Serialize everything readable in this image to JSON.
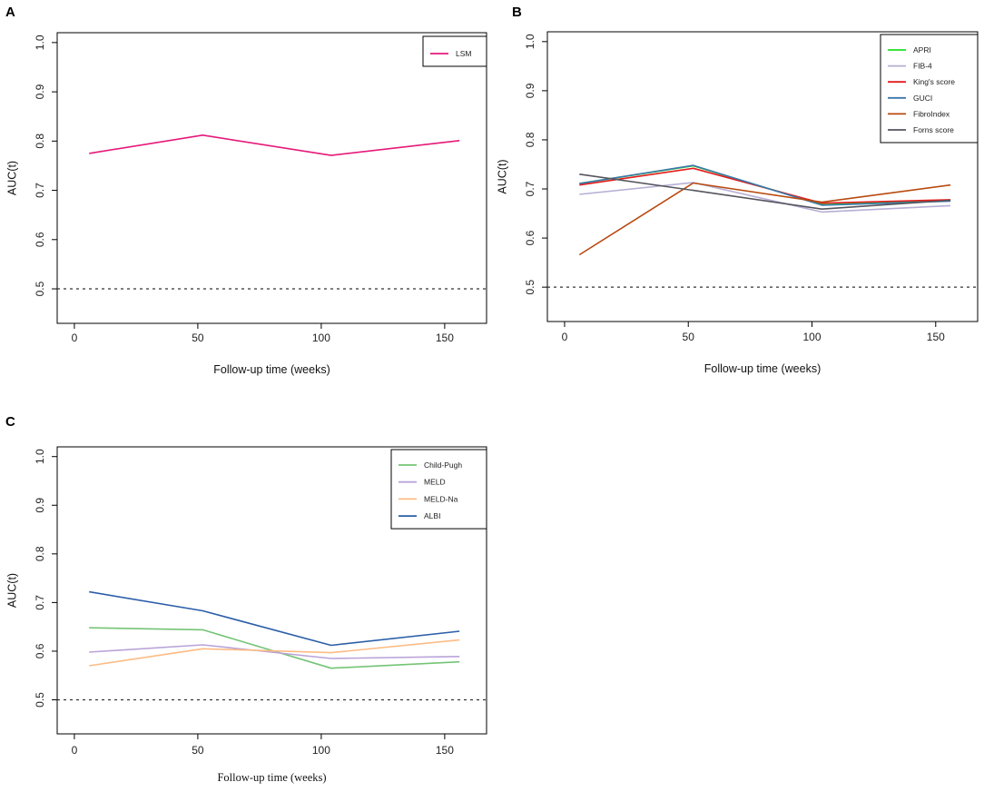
{
  "chart_data": [
    {
      "panel": "A",
      "type": "line",
      "xlabel": "Follow-up time (weeks)",
      "ylabel": "AUC(t)",
      "xlim": [
        0,
        160
      ],
      "ylim": [
        0.43,
        1.02
      ],
      "xticks": [
        0,
        50,
        100,
        150
      ],
      "yticks": [
        0.5,
        0.6,
        0.7,
        0.8,
        0.9,
        1.0
      ],
      "xtick_labels": [
        "0",
        "50",
        "100",
        "150"
      ],
      "ytick_labels": [
        "0.5",
        "0.6",
        "0.7",
        "0.8",
        "0.9",
        "1.0"
      ],
      "reference_line": 0.5,
      "legend_position": "top-right",
      "x": [
        6,
        52,
        104,
        156
      ],
      "series": [
        {
          "name": "LSM",
          "color": "#e6197a",
          "values": [
            0.775,
            0.812,
            0.771,
            0.801
          ]
        }
      ]
    },
    {
      "panel": "B",
      "type": "line",
      "xlabel": "Follow-up time (weeks)",
      "ylabel": "AUC(t)",
      "xlim": [
        0,
        160
      ],
      "ylim": [
        0.43,
        1.02
      ],
      "xticks": [
        0,
        50,
        100,
        150
      ],
      "yticks": [
        0.5,
        0.6,
        0.7,
        0.8,
        0.9,
        1.0
      ],
      "xtick_labels": [
        "0",
        "50",
        "100",
        "150"
      ],
      "ytick_labels": [
        "0.5",
        "0.6",
        "0.7",
        "0.8",
        "0.9",
        "1.0"
      ],
      "reference_line": 0.5,
      "legend_position": "top-right",
      "x": [
        6,
        52,
        104,
        156
      ],
      "series": [
        {
          "name": "APRI",
          "color": "#22dd22",
          "values": [
            0.711,
            0.747,
            0.668,
            0.676
          ]
        },
        {
          "name": "FIB-4",
          "color": "#b7aed4",
          "values": [
            0.689,
            0.713,
            0.653,
            0.666
          ]
        },
        {
          "name": "King's score",
          "color": "#e41a1c",
          "values": [
            0.708,
            0.742,
            0.671,
            0.678
          ]
        },
        {
          "name": "GUCI",
          "color": "#3a77a8",
          "values": [
            0.711,
            0.748,
            0.667,
            0.675
          ]
        },
        {
          "name": "FibroIndex",
          "color": "#b84a10",
          "values": [
            0.566,
            0.712,
            0.673,
            0.708
          ]
        },
        {
          "name": "Forns score",
          "color": "#55555e",
          "values": [
            0.73,
            0.697,
            0.659,
            0.677
          ]
        }
      ]
    },
    {
      "panel": "C",
      "type": "line",
      "xlabel": "Follow-up time (weeks)",
      "ylabel": "AUC(t)",
      "xlim": [
        0,
        160
      ],
      "ylim": [
        0.43,
        1.02
      ],
      "xticks": [
        0,
        50,
        100,
        150
      ],
      "yticks": [
        0.5,
        0.6,
        0.7,
        0.8,
        0.9,
        1.0
      ],
      "xtick_labels": [
        "0",
        "50",
        "100",
        "150"
      ],
      "ytick_labels": [
        "0.5",
        "0.6",
        "0.7",
        "0.8",
        "0.9",
        "1.0"
      ],
      "reference_line": 0.5,
      "legend_position": "top-right",
      "x": [
        6,
        52,
        104,
        156
      ],
      "series": [
        {
          "name": "Child-Pugh",
          "color": "#74c476",
          "values": [
            0.648,
            0.644,
            0.565,
            0.578
          ]
        },
        {
          "name": "MELD",
          "color": "#b9a3d8",
          "values": [
            0.598,
            0.613,
            0.585,
            0.589
          ]
        },
        {
          "name": "MELD-Na",
          "color": "#fdbb84",
          "values": [
            0.57,
            0.605,
            0.597,
            0.623
          ]
        },
        {
          "name": "ALBI",
          "color": "#2b5ea8",
          "values": [
            0.722,
            0.683,
            0.612,
            0.641
          ]
        }
      ]
    }
  ]
}
